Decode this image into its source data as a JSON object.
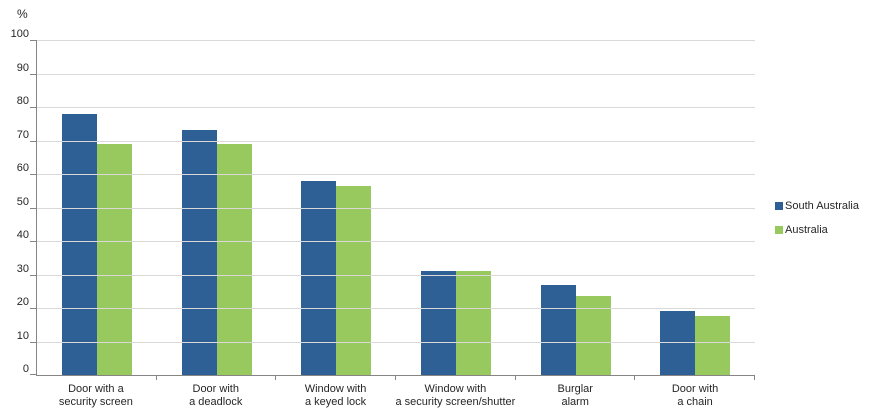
{
  "chart_data": {
    "type": "bar",
    "title": "",
    "ylabel": "%",
    "xlabel": "",
    "ylim": [
      0,
      100
    ],
    "yticks": [
      0,
      10,
      20,
      30,
      40,
      50,
      60,
      70,
      80,
      90,
      100
    ],
    "grid": true,
    "legend_position": "right",
    "categories": [
      "Door with a\nsecurity screen",
      "Door with\na deadlock",
      "Window with\na keyed lock",
      "Window with\na security screen/shutter",
      "Burglar\nalarm",
      "Door with\na chain"
    ],
    "series": [
      {
        "name": "South Australia",
        "color": "#2E6096",
        "values": [
          78,
          73,
          58,
          31,
          27,
          19
        ]
      },
      {
        "name": "Australia",
        "color": "#97C95F",
        "values": [
          69,
          69,
          56.5,
          31,
          23.5,
          17.5
        ]
      }
    ],
    "colors": {
      "gridline": "#d9d9d9",
      "axis": "#868686",
      "text": "#262626"
    }
  }
}
